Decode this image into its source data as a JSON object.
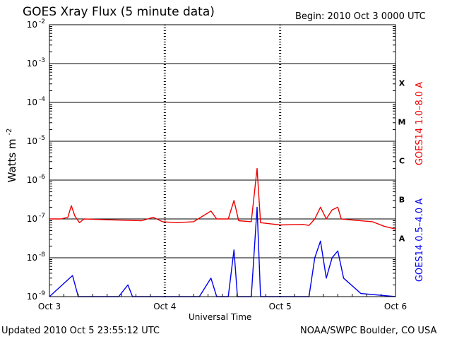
{
  "chart_data": {
    "type": "line",
    "title": "GOES Xray Flux (5 minute data)",
    "begin_label": "Begin:  2010 Oct 3 0000 UTC",
    "xlabel": "Universal Time",
    "ylabel_base": "Watts m",
    "ylabel_exp": "-2",
    "x_ticks": [
      "Oct 3",
      "Oct 4",
      "Oct 5",
      "Oct 6"
    ],
    "xlim_days": [
      0,
      3
    ],
    "yscale": "log",
    "y_exponents": [
      -2,
      -3,
      -4,
      -5,
      -6,
      -7,
      -8,
      -9
    ],
    "ylim": [
      1e-09,
      0.01
    ],
    "flare_classes": [
      "X",
      "M",
      "C",
      "B",
      "A"
    ],
    "series": [
      {
        "name": "GOES14 1.0–8.0 A",
        "color": "#ee0000",
        "points": [
          [
            0.0,
            1e-07
          ],
          [
            0.1,
            1e-07
          ],
          [
            0.16,
            1.1e-07
          ],
          [
            0.19,
            2.2e-07
          ],
          [
            0.22,
            1.2e-07
          ],
          [
            0.26,
            8e-08
          ],
          [
            0.3,
            1e-07
          ],
          [
            0.5,
            9.5e-08
          ],
          [
            0.8,
            9e-08
          ],
          [
            0.9,
            1.1e-07
          ],
          [
            0.98,
            8.5e-08
          ],
          [
            1.1,
            8e-08
          ],
          [
            1.25,
            8.5e-08
          ],
          [
            1.4,
            1.6e-07
          ],
          [
            1.45,
            1e-07
          ],
          [
            1.55,
            1e-07
          ],
          [
            1.6,
            3e-07
          ],
          [
            1.64,
            9e-08
          ],
          [
            1.75,
            8.5e-08
          ],
          [
            1.8,
            2e-06
          ],
          [
            1.83,
            8e-08
          ],
          [
            2.0,
            7e-08
          ],
          [
            2.2,
            7.2e-08
          ],
          [
            2.25,
            6.8e-08
          ],
          [
            2.3,
            1e-07
          ],
          [
            2.35,
            2e-07
          ],
          [
            2.4,
            1e-07
          ],
          [
            2.45,
            1.7e-07
          ],
          [
            2.5,
            2e-07
          ],
          [
            2.53,
            1e-07
          ],
          [
            2.6,
            9.5e-08
          ],
          [
            2.8,
            8.5e-08
          ],
          [
            2.9,
            6.5e-08
          ],
          [
            3.0,
            5.5e-08
          ]
        ]
      },
      {
        "name": "GOES14 0.5–4.0 A",
        "color": "#0000ee",
        "points": [
          [
            0.0,
            1e-09
          ],
          [
            0.2,
            3.5e-09
          ],
          [
            0.25,
            1e-09
          ],
          [
            0.6,
            1e-09
          ],
          [
            0.68,
            2e-09
          ],
          [
            0.72,
            1e-09
          ],
          [
            1.3,
            1e-09
          ],
          [
            1.4,
            3e-09
          ],
          [
            1.45,
            1e-09
          ],
          [
            1.55,
            1e-09
          ],
          [
            1.6,
            1.6e-08
          ],
          [
            1.63,
            1e-09
          ],
          [
            1.75,
            1e-09
          ],
          [
            1.8,
            2e-07
          ],
          [
            1.83,
            1e-09
          ],
          [
            2.0,
            1e-09
          ],
          [
            2.2,
            1e-09
          ],
          [
            2.25,
            1e-09
          ],
          [
            2.3,
            1e-08
          ],
          [
            2.35,
            2.7e-08
          ],
          [
            2.4,
            3e-09
          ],
          [
            2.45,
            1e-08
          ],
          [
            2.5,
            1.5e-08
          ],
          [
            2.55,
            3e-09
          ],
          [
            2.7,
            1.2e-09
          ],
          [
            3.0,
            1e-09
          ]
        ]
      }
    ]
  },
  "footer": {
    "updated": "Updated 2010 Oct  5 23:55:12 UTC",
    "credit": "NOAA/SWPC Boulder, CO USA"
  }
}
